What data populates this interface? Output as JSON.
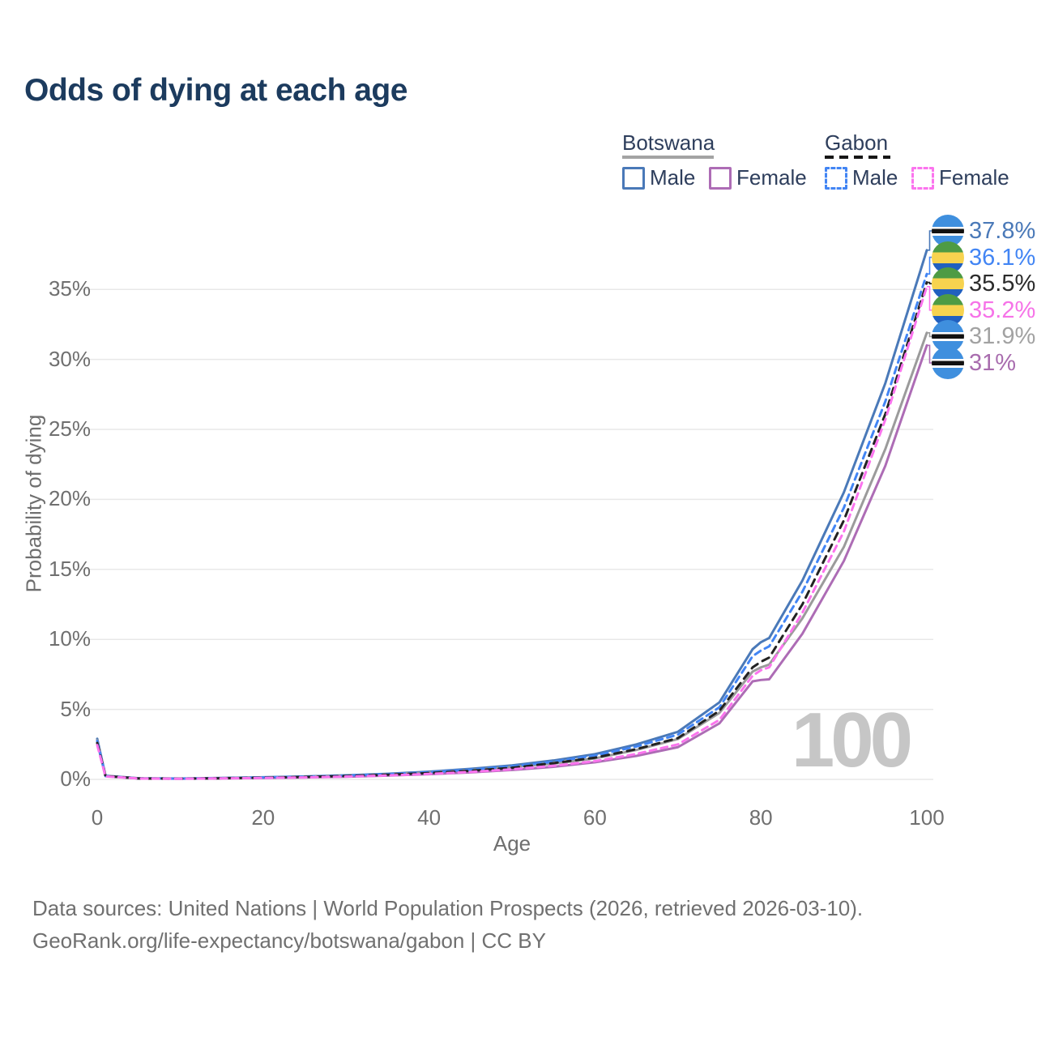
{
  "title": "Odds of dying at each age",
  "legend": {
    "groups": [
      {
        "name": "Botswana",
        "line_style": "solid",
        "underline_color": "#a3a3a3",
        "items": [
          {
            "label": "Male",
            "color": "#4a79b8"
          },
          {
            "label": "Female",
            "color": "#ad6cb5"
          }
        ]
      },
      {
        "name": "Gabon",
        "line_style": "dashed",
        "underline_color": "#161616",
        "items": [
          {
            "label": "Male",
            "color": "#4285f4"
          },
          {
            "label": "Female",
            "color": "#fb74ee"
          }
        ]
      }
    ]
  },
  "y_axis": {
    "label": "Probability of dying",
    "ticks": [
      {
        "value": 0,
        "label": "0%"
      },
      {
        "value": 5,
        "label": "5%"
      },
      {
        "value": 10,
        "label": "10%"
      },
      {
        "value": 15,
        "label": "15%"
      },
      {
        "value": 20,
        "label": "20%"
      },
      {
        "value": 25,
        "label": "25%"
      },
      {
        "value": 30,
        "label": "30%"
      },
      {
        "value": 35,
        "label": "35%"
      }
    ]
  },
  "x_axis": {
    "label": "Age",
    "ticks": [
      {
        "value": 0,
        "label": "0"
      },
      {
        "value": 20,
        "label": "20"
      },
      {
        "value": 40,
        "label": "40"
      },
      {
        "value": 60,
        "label": "60"
      },
      {
        "value": 80,
        "label": "80"
      },
      {
        "value": 100,
        "label": "100"
      }
    ]
  },
  "watermark": "100",
  "footer": {
    "line1": "Data sources: United Nations | World Population Prospects (2026, retrieved 2026-03-10).",
    "line2": "GeoRank.org/life-expectancy/botswana/gabon | CC BY"
  },
  "flag_colors": {
    "botswana": {
      "blue": "#3f8fde",
      "black": "#111111",
      "white": "#ffffff"
    },
    "gabon": {
      "green": "#4e9b44",
      "yellow": "#f7d34f",
      "blue": "#2160bf"
    }
  },
  "chart_data": {
    "type": "line",
    "title": "Odds of dying at each age",
    "xlabel": "Age",
    "ylabel": "Probability of dying",
    "xlim": [
      0,
      100
    ],
    "ylim_percent": [
      0,
      38
    ],
    "grid": "horizontal",
    "legend_position": "top-right",
    "x": [
      0,
      1,
      5,
      10,
      15,
      20,
      25,
      30,
      35,
      40,
      45,
      50,
      55,
      60,
      65,
      70,
      75,
      79,
      80,
      81,
      85,
      90,
      95,
      100
    ],
    "unit": "percent",
    "series": [
      {
        "name": "Botswana Male",
        "country": "Botswana",
        "sex": "Male",
        "style": "solid",
        "color": "#4a79b8",
        "dash": null,
        "label_color": "#4a79b8",
        "flag": "botswana",
        "end_label": "37.8%",
        "values": [
          2.9,
          0.26,
          0.08,
          0.06,
          0.1,
          0.15,
          0.21,
          0.29,
          0.4,
          0.55,
          0.75,
          1.0,
          1.35,
          1.8,
          2.5,
          3.4,
          5.5,
          9.3,
          9.8,
          10.1,
          14.2,
          20.5,
          28.3,
          37.8
        ]
      },
      {
        "name": "Gabon Male",
        "country": "Gabon",
        "sex": "Male",
        "style": "dashed",
        "color": "#4285f4",
        "dash": "8 6",
        "label_color": "#4285f4",
        "flag": "gabon",
        "end_label": "36.1%",
        "values": [
          2.75,
          0.24,
          0.07,
          0.055,
          0.09,
          0.14,
          0.19,
          0.27,
          0.37,
          0.51,
          0.69,
          0.93,
          1.26,
          1.7,
          2.35,
          3.2,
          5.15,
          8.8,
          9.2,
          9.5,
          13.4,
          19.4,
          27.0,
          36.1
        ]
      },
      {
        "name": "Gabon Both sexes",
        "country": "Gabon",
        "sex": "Both",
        "style": "dashed",
        "color": "#222222",
        "dash": "9 7",
        "label_color": "#2b2b2b",
        "flag": "gabon",
        "end_label": "35.5%",
        "values": [
          2.6,
          0.23,
          0.065,
          0.05,
          0.08,
          0.12,
          0.17,
          0.24,
          0.33,
          0.45,
          0.61,
          0.83,
          1.16,
          1.55,
          2.16,
          2.95,
          4.9,
          8.0,
          8.4,
          8.7,
          12.5,
          18.5,
          26.1,
          35.5
        ]
      },
      {
        "name": "Gabon Female",
        "country": "Gabon",
        "sex": "Female",
        "style": "dashed",
        "color": "#fb74ee",
        "dash": "8 6",
        "label_color": "#f673e8",
        "flag": "gabon",
        "end_label": "35.2%",
        "values": [
          2.45,
          0.21,
          0.06,
          0.045,
          0.07,
          0.1,
          0.14,
          0.2,
          0.28,
          0.39,
          0.53,
          0.72,
          0.97,
          1.3,
          1.82,
          2.5,
          4.25,
          7.4,
          7.8,
          8.0,
          11.9,
          17.7,
          25.7,
          35.2
        ]
      },
      {
        "name": "Botswana Both sexes",
        "country": "Botswana",
        "sex": "Both",
        "style": "solid",
        "color": "#9b9b9b",
        "dash": null,
        "label_color": "#a2a2a2",
        "flag": "botswana",
        "end_label": "31.9%",
        "values": [
          2.8,
          0.25,
          0.07,
          0.055,
          0.085,
          0.13,
          0.18,
          0.26,
          0.36,
          0.49,
          0.66,
          0.89,
          1.12,
          1.5,
          2.1,
          2.88,
          4.75,
          7.7,
          8.0,
          8.2,
          11.5,
          16.6,
          23.6,
          31.9
        ]
      },
      {
        "name": "Botswana Female",
        "country": "Botswana",
        "sex": "Female",
        "style": "solid",
        "color": "#ad6cb5",
        "dash": null,
        "label_color": "#a86cae",
        "flag": "botswana",
        "end_label": "31%",
        "values": [
          2.65,
          0.23,
          0.065,
          0.05,
          0.07,
          0.1,
          0.14,
          0.19,
          0.27,
          0.37,
          0.5,
          0.67,
          0.9,
          1.22,
          1.68,
          2.3,
          4.0,
          7.0,
          7.1,
          7.15,
          10.4,
          15.6,
          22.4,
          31.0
        ]
      }
    ]
  }
}
